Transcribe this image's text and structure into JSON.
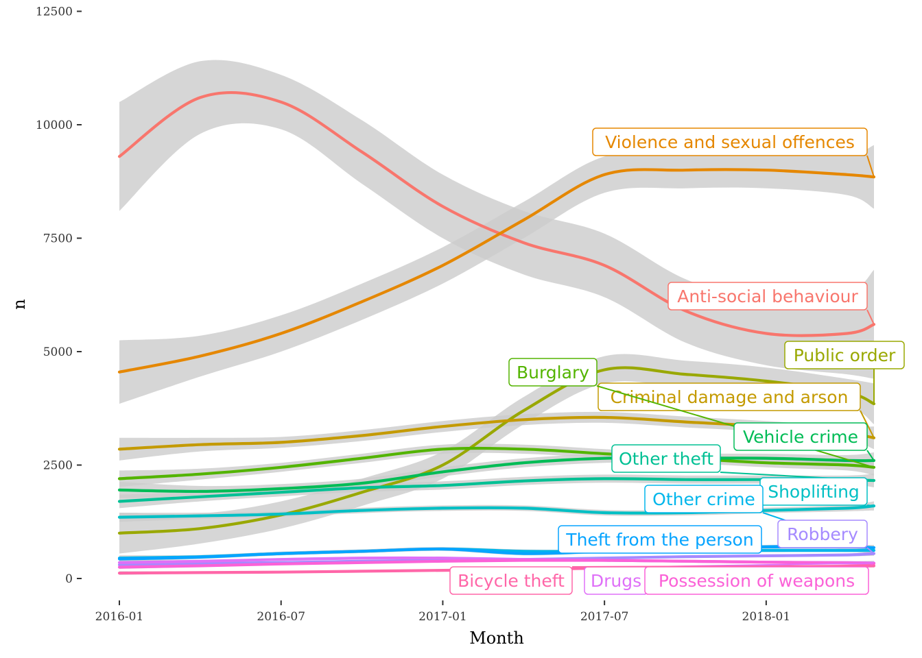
{
  "chart_data": {
    "type": "line",
    "xlabel": "Month",
    "ylabel": "n",
    "xlim": [
      "2016-01",
      "2018-05"
    ],
    "ylim": [
      -500,
      12500
    ],
    "xticks": [
      "2016-01",
      "2016-07",
      "2017-01",
      "2017-07",
      "2018-01"
    ],
    "yticks": [
      0,
      2500,
      5000,
      7500,
      10000,
      12500
    ],
    "grid": false,
    "legend": "none (direct labels)",
    "confidence_band": true,
    "band_color": "#cccccc",
    "x": [
      "2016-01",
      "2016-04",
      "2016-07",
      "2016-10",
      "2017-01",
      "2017-04",
      "2017-07",
      "2017-10",
      "2018-01",
      "2018-04",
      "2018-05"
    ],
    "series": [
      {
        "name": "Anti-social behaviour",
        "color": "#F8766D",
        "values": [
          9300,
          10600,
          10500,
          9400,
          8200,
          7400,
          6900,
          5900,
          5400,
          5400,
          5600
        ],
        "band": [
          1200,
          800,
          600,
          700,
          700,
          700,
          700,
          700,
          700,
          900,
          1200
        ]
      },
      {
        "name": "Violence and sexual offences",
        "color": "#E58700",
        "values": [
          4550,
          4900,
          5400,
          6100,
          6900,
          7900,
          8900,
          9000,
          9000,
          8900,
          8850
        ],
        "band": [
          700,
          450,
          400,
          400,
          400,
          400,
          400,
          400,
          400,
          450,
          700
        ]
      },
      {
        "name": "Public order",
        "color": "#99A800",
        "values": [
          1000,
          1100,
          1400,
          1900,
          2500,
          3700,
          4600,
          4500,
          4350,
          4100,
          3850
        ],
        "band": [
          450,
          330,
          300,
          300,
          300,
          300,
          300,
          300,
          300,
          300,
          450
        ]
      },
      {
        "name": "Criminal damage and arson",
        "color": "#C49A00",
        "values": [
          2850,
          2950,
          3000,
          3150,
          3350,
          3500,
          3550,
          3450,
          3350,
          3200,
          3100
        ],
        "band": [
          250,
          150,
          120,
          120,
          120,
          120,
          120,
          120,
          120,
          150,
          250
        ]
      },
      {
        "name": "Burglary",
        "color": "#53B400",
        "values": [
          2200,
          2300,
          2450,
          2650,
          2850,
          2850,
          2750,
          2650,
          2550,
          2500,
          2450
        ],
        "band": [
          180,
          120,
          100,
          100,
          100,
          100,
          100,
          100,
          100,
          120,
          180
        ]
      },
      {
        "name": "Vehicle crime",
        "color": "#00BC56",
        "values": [
          1950,
          1920,
          1980,
          2100,
          2350,
          2550,
          2650,
          2650,
          2650,
          2600,
          2600
        ],
        "band": [
          180,
          120,
          100,
          100,
          100,
          100,
          100,
          100,
          100,
          120,
          180
        ]
      },
      {
        "name": "Other theft",
        "color": "#00C094",
        "values": [
          1700,
          1800,
          1900,
          2000,
          2050,
          2150,
          2200,
          2180,
          2180,
          2170,
          2160
        ],
        "band": [
          150,
          100,
          90,
          90,
          90,
          90,
          90,
          90,
          90,
          100,
          150
        ]
      },
      {
        "name": "Shoplifting",
        "color": "#00BFC4",
        "values": [
          1350,
          1380,
          1420,
          1500,
          1550,
          1550,
          1450,
          1450,
          1500,
          1550,
          1600
        ],
        "band": [
          100,
          70,
          60,
          60,
          60,
          60,
          60,
          60,
          60,
          70,
          100
        ]
      },
      {
        "name": "Other crime",
        "color": "#00B6EB",
        "values": [
          450,
          480,
          550,
          600,
          650,
          600,
          600,
          620,
          620,
          620,
          620
        ],
        "band": [
          60,
          40,
          40,
          40,
          40,
          40,
          40,
          40,
          40,
          40,
          60
        ]
      },
      {
        "name": "Theft from the person",
        "color": "#06A4FF",
        "values": [
          430,
          470,
          550,
          600,
          650,
          550,
          600,
          650,
          700,
          700,
          680
        ],
        "band": [
          60,
          40,
          40,
          40,
          40,
          40,
          40,
          40,
          40,
          40,
          60
        ]
      },
      {
        "name": "Robbery",
        "color": "#A58AFF",
        "values": [
          300,
          330,
          350,
          380,
          400,
          420,
          450,
          480,
          500,
          520,
          550
        ],
        "band": [
          50,
          30,
          30,
          30,
          30,
          30,
          30,
          30,
          30,
          30,
          50
        ]
      },
      {
        "name": "Drugs",
        "color": "#DF70F8",
        "values": [
          350,
          380,
          420,
          450,
          450,
          420,
          400,
          380,
          360,
          350,
          340
        ],
        "band": [
          50,
          30,
          30,
          30,
          30,
          30,
          30,
          30,
          30,
          30,
          50
        ]
      },
      {
        "name": "Possession of weapons",
        "color": "#FB61D7",
        "values": [
          250,
          280,
          320,
          350,
          380,
          400,
          400,
          380,
          360,
          340,
          330
        ],
        "band": [
          40,
          25,
          25,
          25,
          25,
          25,
          25,
          25,
          25,
          25,
          40
        ]
      },
      {
        "name": "Bicycle theft",
        "color": "#FF66A8",
        "values": [
          120,
          130,
          140,
          160,
          180,
          200,
          230,
          250,
          260,
          270,
          280
        ],
        "band": [
          40,
          25,
          25,
          25,
          25,
          25,
          25,
          25,
          25,
          25,
          40
        ]
      }
    ]
  }
}
